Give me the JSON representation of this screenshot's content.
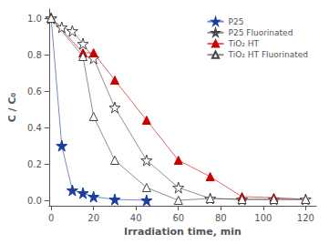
{
  "chart_data": {
    "type": "line",
    "xlabel": "Irradiation time, min",
    "ylabel": "C / C₀",
    "xlim": [
      -1,
      125
    ],
    "ylim": [
      -0.03,
      1.05
    ],
    "xticks": [
      0,
      20,
      40,
      60,
      80,
      100,
      120
    ],
    "yticks": [
      {
        "value": 0.0,
        "label": "0.0"
      },
      0.2,
      0.4,
      0.6,
      0.8,
      {
        "value": 1.0,
        "label": "1.0"
      }
    ],
    "grid": false,
    "legend": "upper right",
    "series": [
      {
        "name": "P25",
        "color": "#1a3f9e",
        "marker": "star",
        "x": [
          0,
          5,
          10,
          15,
          20,
          30,
          45
        ],
        "values": [
          1.0,
          0.3,
          0.055,
          0.04,
          0.02,
          0.005,
          0.0
        ]
      },
      {
        "name": "P25 Fluorinated",
        "color": "#444444",
        "marker": "open_star",
        "x": [
          0,
          5,
          10,
          15,
          20,
          30,
          45,
          60,
          75,
          90,
          105,
          120
        ],
        "values": [
          1.0,
          0.95,
          0.93,
          0.86,
          0.78,
          0.51,
          0.22,
          0.07,
          0.01,
          0.005,
          0.005,
          0.005
        ]
      },
      {
        "name": "TiO₂ HT",
        "color": "#cc0000",
        "marker": "triangle",
        "x": [
          0,
          15,
          20,
          30,
          45,
          60,
          75,
          90,
          105,
          120
        ],
        "values": [
          1.0,
          0.81,
          0.81,
          0.66,
          0.44,
          0.22,
          0.13,
          0.02,
          0.015,
          0.005
        ]
      },
      {
        "name": "TiO₂ HT Fluorinated",
        "color": "#444444",
        "marker": "open_triangle",
        "x": [
          0,
          15,
          20,
          30,
          45,
          60,
          75,
          90,
          105,
          120
        ],
        "values": [
          1.0,
          0.79,
          0.46,
          0.22,
          0.07,
          0.0,
          0.01,
          0.005,
          0.005,
          0.005
        ]
      }
    ]
  }
}
